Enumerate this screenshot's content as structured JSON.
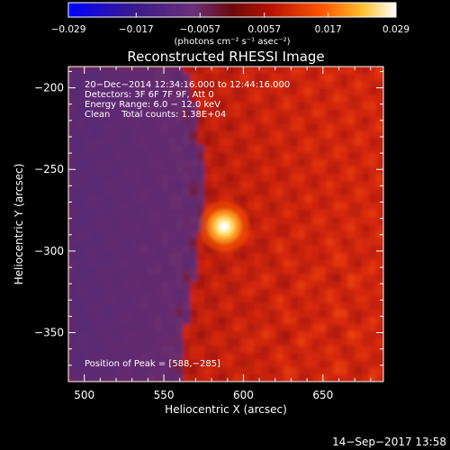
{
  "chart_data": {
    "type": "heatmap",
    "title": "Reconstructed RHESSI Image",
    "xlabel": "Heliocentric X (arcsec)",
    "ylabel": "Heliocentric Y (arcsec)",
    "xlim": [
      490,
      688
    ],
    "ylim": [
      -380,
      -187
    ],
    "x_ticks": [
      500,
      550,
      600,
      650
    ],
    "x_tick_labels": [
      "500",
      "550",
      "600",
      "650"
    ],
    "y_ticks": [
      -200,
      -250,
      -300,
      -350
    ],
    "y_tick_labels": [
      "−200",
      "−250",
      "−300",
      "−350"
    ],
    "colorbar": {
      "ticks": [
        -0.029,
        -0.017,
        -0.0057,
        0.0057,
        0.017,
        0.029
      ],
      "tick_labels": [
        "−0.029",
        "−0.017",
        "−0.0057",
        "0.0057",
        "0.017",
        "0.029"
      ],
      "range": [
        -0.029,
        0.029
      ],
      "unit_label": "(photons cm⁻² s⁻¹ asec⁻²)",
      "colors": [
        "#0000ff",
        "#5a2a8c",
        "#6a2f7a",
        "#8a1010",
        "#c81a00",
        "#ff6a00",
        "#ffcc33",
        "#ffffff"
      ]
    },
    "annotations": [
      "20−Dec−2014 12:34:16.000 to 12:44:16.000",
      "Detectors: 3F 6F 7F 9F, Att 0",
      "Energy Range: 6.0 − 12.0 keV",
      "Clean    Total counts: 1.38E+04"
    ],
    "peak_label": "Position of Peak = [588,−285]",
    "peak": {
      "x": 588,
      "y": -285
    },
    "timestamp": "14−Sep−2017 13:58",
    "grid": false
  }
}
